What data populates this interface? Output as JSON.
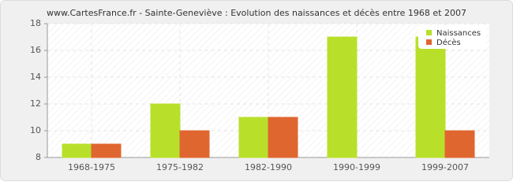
{
  "chart_data": {
    "type": "bar",
    "title": "www.CartesFrance.fr - Sainte-Geneviève : Evolution des naissances et décès entre 1968 et 2007",
    "categories": [
      "1968-1975",
      "1975-1982",
      "1982-1990",
      "1990-1999",
      "1999-2007"
    ],
    "series": [
      {
        "name": "Naissances",
        "color": "#b8e02a",
        "values": [
          9,
          12,
          11,
          17,
          17
        ]
      },
      {
        "name": "Décès",
        "color": "#e0662f",
        "values": [
          9,
          10,
          11,
          8,
          10
        ]
      }
    ],
    "ylim": [
      8,
      18
    ],
    "yticks": [
      8,
      10,
      12,
      14,
      16,
      18
    ],
    "grid": true,
    "legend": "top-right"
  }
}
